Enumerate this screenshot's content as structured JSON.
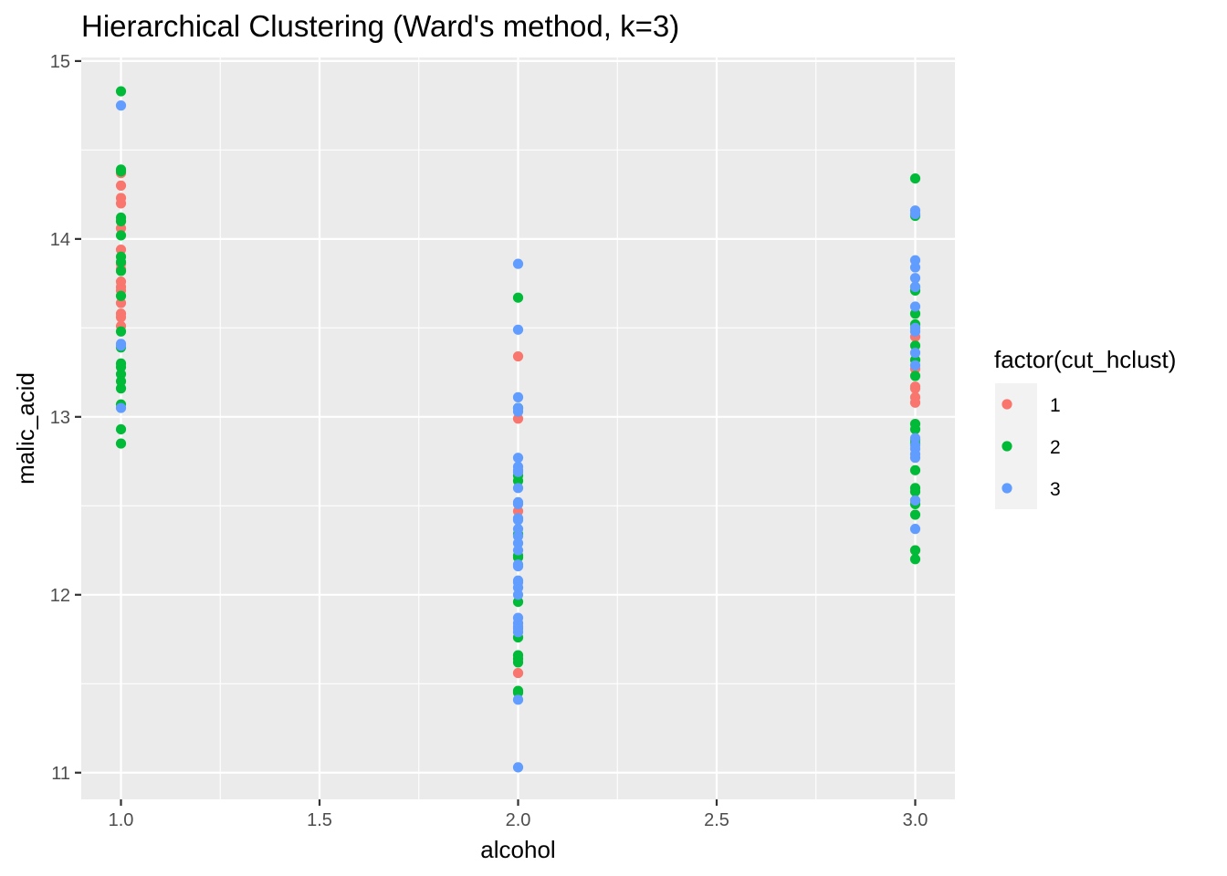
{
  "chart_data": {
    "type": "scatter",
    "title": "Hierarchical Clustering (Ward's method, k=3)",
    "xlabel": "alcohol",
    "ylabel": "malic_acid",
    "xlim": [
      0.9,
      3.1
    ],
    "ylim": [
      10.85,
      15.02
    ],
    "x_ticks": [
      1.0,
      1.5,
      2.0,
      2.5,
      3.0
    ],
    "x_tick_labels": [
      "1.0",
      "1.5",
      "2.0",
      "2.5",
      "3.0"
    ],
    "y_ticks": [
      11,
      12,
      13,
      14,
      15
    ],
    "y_tick_labels": [
      "11",
      "12",
      "13",
      "14",
      "15"
    ],
    "grid": true,
    "legend": {
      "title": "factor(cut_hclust)",
      "placement": "right"
    },
    "series": [
      {
        "name": "1",
        "color": "#F8766D",
        "points": [
          [
            1,
            14.37
          ],
          [
            1,
            14.3
          ],
          [
            1,
            14.23
          ],
          [
            1,
            14.2
          ],
          [
            1,
            14.1
          ],
          [
            1,
            14.06
          ],
          [
            1,
            13.94
          ],
          [
            1,
            13.86
          ],
          [
            1,
            13.83
          ],
          [
            1,
            13.76
          ],
          [
            1,
            13.73
          ],
          [
            1,
            13.71
          ],
          [
            1,
            13.64
          ],
          [
            1,
            13.58
          ],
          [
            1,
            13.56
          ],
          [
            1,
            13.51
          ],
          [
            2,
            13.34
          ],
          [
            2,
            12.99
          ],
          [
            2,
            12.47
          ],
          [
            2,
            11.56
          ],
          [
            3,
            13.5
          ],
          [
            3,
            13.45
          ],
          [
            3,
            13.27
          ],
          [
            3,
            13.17
          ],
          [
            3,
            13.16
          ],
          [
            3,
            13.11
          ],
          [
            3,
            13.08
          ],
          [
            3,
            12.25
          ]
        ]
      },
      {
        "name": "2",
        "color": "#00BA38",
        "points": [
          [
            1,
            14.83
          ],
          [
            1,
            14.39
          ],
          [
            1,
            14.38
          ],
          [
            1,
            14.12
          ],
          [
            1,
            14.1
          ],
          [
            1,
            14.02
          ],
          [
            1,
            13.9
          ],
          [
            1,
            13.87
          ],
          [
            1,
            13.82
          ],
          [
            1,
            13.68
          ],
          [
            1,
            13.48
          ],
          [
            1,
            13.39
          ],
          [
            1,
            13.3
          ],
          [
            1,
            13.28
          ],
          [
            1,
            13.24
          ],
          [
            1,
            13.2
          ],
          [
            1,
            13.16
          ],
          [
            1,
            13.07
          ],
          [
            1,
            12.93
          ],
          [
            1,
            12.85
          ],
          [
            2,
            13.67
          ],
          [
            2,
            13.05
          ],
          [
            2,
            12.67
          ],
          [
            2,
            12.64
          ],
          [
            2,
            12.34
          ],
          [
            2,
            12.22
          ],
          [
            2,
            12.21
          ],
          [
            2,
            11.96
          ],
          [
            2,
            11.76
          ],
          [
            2,
            11.66
          ],
          [
            2,
            11.64
          ],
          [
            2,
            11.62
          ],
          [
            2,
            11.46
          ],
          [
            2,
            11.45
          ],
          [
            3,
            14.34
          ],
          [
            3,
            14.13
          ],
          [
            3,
            13.73
          ],
          [
            3,
            13.71
          ],
          [
            3,
            13.58
          ],
          [
            3,
            13.52
          ],
          [
            3,
            13.4
          ],
          [
            3,
            13.32
          ],
          [
            3,
            13.23
          ],
          [
            3,
            12.96
          ],
          [
            3,
            12.93
          ],
          [
            3,
            12.87
          ],
          [
            3,
            12.85
          ],
          [
            3,
            12.7
          ],
          [
            3,
            12.6
          ],
          [
            3,
            12.58
          ],
          [
            3,
            12.53
          ],
          [
            3,
            12.51
          ],
          [
            3,
            12.45
          ],
          [
            3,
            12.25
          ],
          [
            3,
            12.2
          ]
        ]
      },
      {
        "name": "3",
        "color": "#619CFF",
        "points": [
          [
            1,
            14.75
          ],
          [
            1,
            13.41
          ],
          [
            1,
            13.4
          ],
          [
            1,
            13.05
          ],
          [
            2,
            13.86
          ],
          [
            2,
            13.49
          ],
          [
            2,
            13.11
          ],
          [
            2,
            13.05
          ],
          [
            2,
            13.03
          ],
          [
            2,
            12.77
          ],
          [
            2,
            12.72
          ],
          [
            2,
            12.7
          ],
          [
            2,
            12.69
          ],
          [
            2,
            12.6
          ],
          [
            2,
            12.52
          ],
          [
            2,
            12.51
          ],
          [
            2,
            12.43
          ],
          [
            2,
            12.42
          ],
          [
            2,
            12.37
          ],
          [
            2,
            12.33
          ],
          [
            2,
            12.29
          ],
          [
            2,
            12.25
          ],
          [
            2,
            12.17
          ],
          [
            2,
            12.16
          ],
          [
            2,
            12.08
          ],
          [
            2,
            12.07
          ],
          [
            2,
            12.04
          ],
          [
            2,
            12.0
          ],
          [
            2,
            11.87
          ],
          [
            2,
            11.84
          ],
          [
            2,
            11.82
          ],
          [
            2,
            11.81
          ],
          [
            2,
            11.79
          ],
          [
            2,
            11.41
          ],
          [
            2,
            11.03
          ],
          [
            3,
            14.16
          ],
          [
            3,
            14.14
          ],
          [
            3,
            13.88
          ],
          [
            3,
            13.84
          ],
          [
            3,
            13.78
          ],
          [
            3,
            13.73
          ],
          [
            3,
            13.62
          ],
          [
            3,
            13.5
          ],
          [
            3,
            13.48
          ],
          [
            3,
            13.36
          ],
          [
            3,
            13.29
          ],
          [
            3,
            12.88
          ],
          [
            3,
            12.84
          ],
          [
            3,
            12.82
          ],
          [
            3,
            12.79
          ],
          [
            3,
            12.77
          ],
          [
            3,
            12.53
          ],
          [
            3,
            12.37
          ]
        ]
      }
    ]
  }
}
